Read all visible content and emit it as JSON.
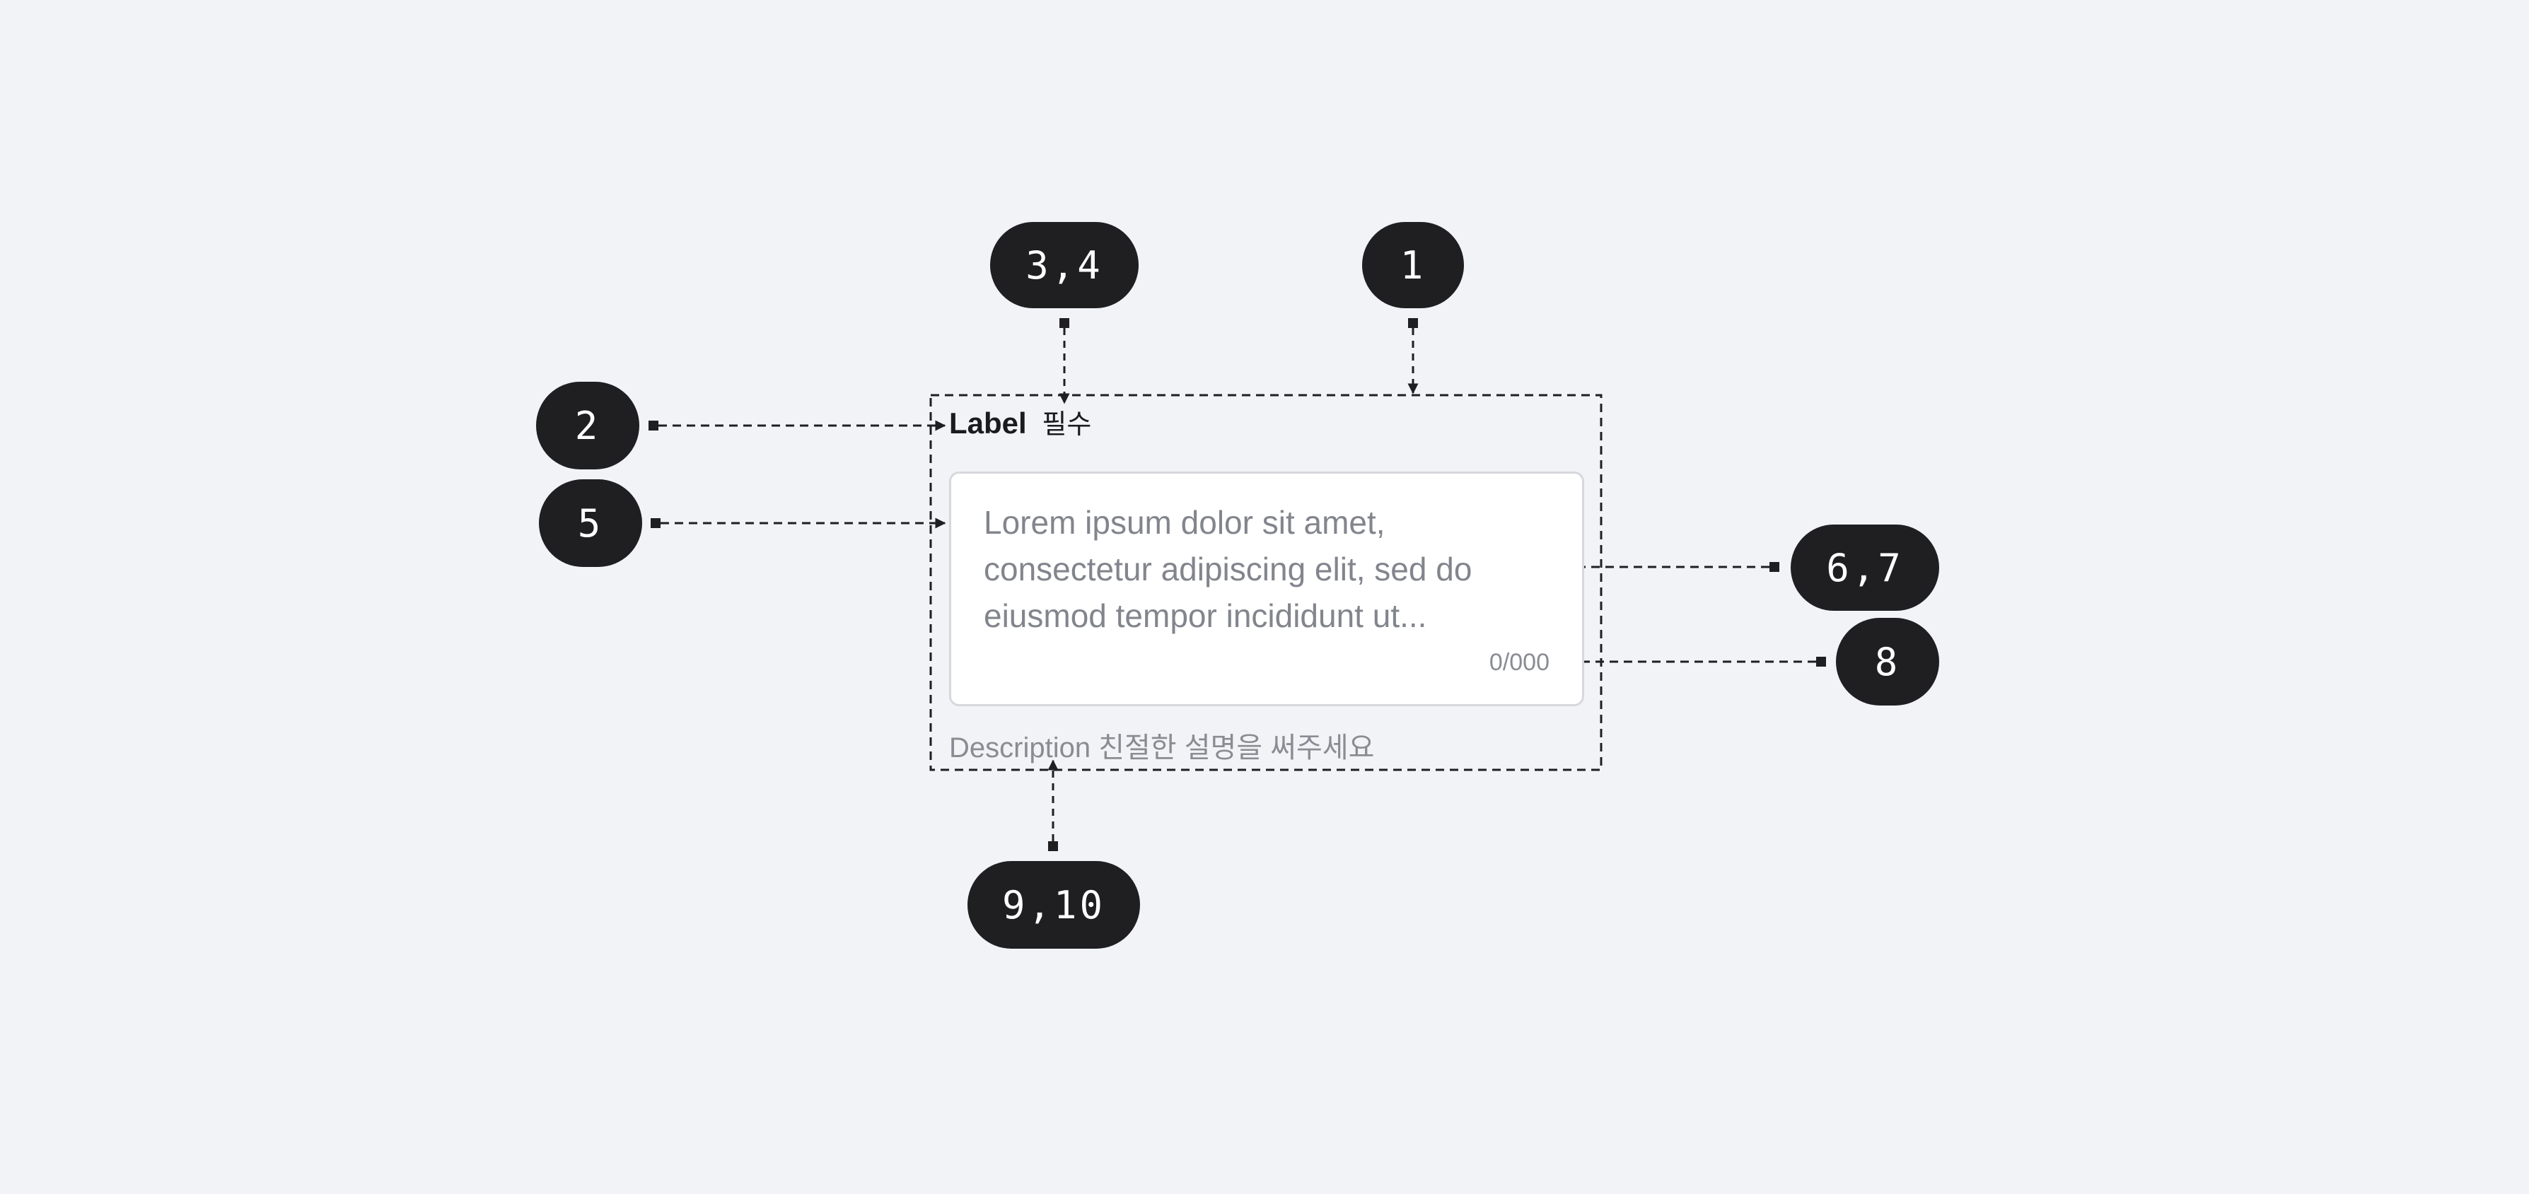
{
  "badges": {
    "b1": "1",
    "b2": "2",
    "b34": "3,4",
    "b5": "5",
    "b67": "6,7",
    "b8": "8",
    "b910": "9,10"
  },
  "field": {
    "label": "Label",
    "required_mark": "필수",
    "textarea_value": "Lorem ipsum dolor sit amet,\nconsectetur adipiscing elit, sed do\neiusmod tempor incididunt ut...",
    "counter": "0/000",
    "description": "Description 친절한 설명을 써주세요"
  },
  "colors": {
    "background": "#f2f3f7",
    "badge": "#1f1f21",
    "annotation_line": "#1f1f21",
    "placeholder_text": "#83858d"
  }
}
